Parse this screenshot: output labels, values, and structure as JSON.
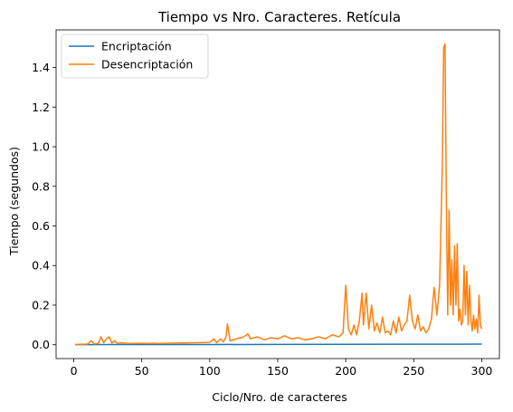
{
  "chart_data": {
    "type": "line",
    "title": "Tiempo vs Nro. Caracteres. Retícula",
    "xlabel": "Ciclo/Nro. de caracteres",
    "ylabel": "Tiempo (segundos)",
    "xlim": [
      -13,
      313
    ],
    "ylim": [
      -0.07,
      1.59
    ],
    "xticks": [
      0,
      50,
      100,
      150,
      200,
      250,
      300
    ],
    "yticks": [
      0.0,
      0.2,
      0.4,
      0.6,
      0.8,
      1.0,
      1.2,
      1.4
    ],
    "xtick_labels": [
      "0",
      "50",
      "100",
      "150",
      "200",
      "250",
      "300"
    ],
    "ytick_labels": [
      "0.0",
      "0.2",
      "0.4",
      "0.6",
      "0.8",
      "1.0",
      "1.2",
      "1.4"
    ],
    "legend_position": "top-left",
    "grid": false,
    "series": [
      {
        "name": "Encriptación",
        "color": "#1f77b4",
        "points": [
          [
            1,
            0.0005
          ],
          [
            50,
            0.0007
          ],
          [
            100,
            0.001
          ],
          [
            150,
            0.0015
          ],
          [
            200,
            0.002
          ],
          [
            250,
            0.0025
          ],
          [
            300,
            0.003
          ]
        ]
      },
      {
        "name": "Desencriptación",
        "color": "#ff7f0e",
        "points": [
          [
            1,
            0.001
          ],
          [
            5,
            0.002
          ],
          [
            10,
            0.003
          ],
          [
            13,
            0.02
          ],
          [
            15,
            0.004
          ],
          [
            18,
            0.006
          ],
          [
            20,
            0.04
          ],
          [
            22,
            0.01
          ],
          [
            24,
            0.03
          ],
          [
            26,
            0.04
          ],
          [
            28,
            0.008
          ],
          [
            30,
            0.02
          ],
          [
            32,
            0.006
          ],
          [
            35,
            0.01
          ],
          [
            40,
            0.006
          ],
          [
            50,
            0.007
          ],
          [
            55,
            0.006
          ],
          [
            58,
            0.008
          ],
          [
            62,
            0.006
          ],
          [
            70,
            0.008
          ],
          [
            80,
            0.009
          ],
          [
            90,
            0.01
          ],
          [
            100,
            0.012
          ],
          [
            103,
            0.03
          ],
          [
            105,
            0.01
          ],
          [
            108,
            0.03
          ],
          [
            110,
            0.015
          ],
          [
            112,
            0.04
          ],
          [
            113,
            0.105
          ],
          [
            115,
            0.02
          ],
          [
            120,
            0.03
          ],
          [
            125,
            0.04
          ],
          [
            128,
            0.055
          ],
          [
            130,
            0.03
          ],
          [
            135,
            0.04
          ],
          [
            140,
            0.025
          ],
          [
            145,
            0.035
          ],
          [
            150,
            0.03
          ],
          [
            155,
            0.045
          ],
          [
            160,
            0.03
          ],
          [
            165,
            0.035
          ],
          [
            170,
            0.025
          ],
          [
            175,
            0.03
          ],
          [
            180,
            0.04
          ],
          [
            185,
            0.03
          ],
          [
            190,
            0.05
          ],
          [
            195,
            0.04
          ],
          [
            198,
            0.06
          ],
          [
            200,
            0.3
          ],
          [
            202,
            0.08
          ],
          [
            204,
            0.05
          ],
          [
            206,
            0.1
          ],
          [
            208,
            0.05
          ],
          [
            210,
            0.12
          ],
          [
            212,
            0.26
          ],
          [
            213,
            0.1
          ],
          [
            215,
            0.26
          ],
          [
            217,
            0.08
          ],
          [
            219,
            0.2
          ],
          [
            221,
            0.07
          ],
          [
            223,
            0.11
          ],
          [
            225,
            0.06
          ],
          [
            227,
            0.14
          ],
          [
            229,
            0.06
          ],
          [
            231,
            0.07
          ],
          [
            233,
            0.05
          ],
          [
            235,
            0.12
          ],
          [
            237,
            0.06
          ],
          [
            239,
            0.14
          ],
          [
            241,
            0.07
          ],
          [
            243,
            0.1
          ],
          [
            245,
            0.12
          ],
          [
            247,
            0.25
          ],
          [
            249,
            0.12
          ],
          [
            251,
            0.08
          ],
          [
            253,
            0.15
          ],
          [
            255,
            0.07
          ],
          [
            257,
            0.09
          ],
          [
            259,
            0.06
          ],
          [
            261,
            0.08
          ],
          [
            263,
            0.13
          ],
          [
            265,
            0.29
          ],
          [
            267,
            0.15
          ],
          [
            269,
            0.3
          ],
          [
            271,
            0.9
          ],
          [
            272,
            1.5
          ],
          [
            273,
            1.52
          ],
          [
            274,
            0.7
          ],
          [
            275,
            0.15
          ],
          [
            276,
            0.68
          ],
          [
            277,
            0.2
          ],
          [
            278,
            0.43
          ],
          [
            279,
            0.15
          ],
          [
            280,
            0.5
          ],
          [
            281,
            0.2
          ],
          [
            282,
            0.51
          ],
          [
            283,
            0.12
          ],
          [
            284,
            0.18
          ],
          [
            285,
            0.1
          ],
          [
            286,
            0.12
          ],
          [
            287,
            0.4
          ],
          [
            288,
            0.15
          ],
          [
            289,
            0.37
          ],
          [
            290,
            0.1
          ],
          [
            291,
            0.3
          ],
          [
            292,
            0.13
          ],
          [
            293,
            0.07
          ],
          [
            294,
            0.15
          ],
          [
            295,
            0.08
          ],
          [
            296,
            0.13
          ],
          [
            297,
            0.06
          ],
          [
            298,
            0.25
          ],
          [
            299,
            0.1
          ],
          [
            300,
            0.08
          ]
        ]
      }
    ]
  }
}
